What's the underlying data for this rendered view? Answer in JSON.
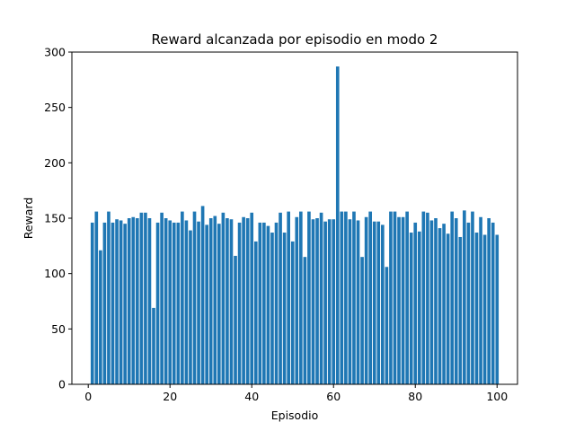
{
  "chart_data": {
    "type": "bar",
    "title": "Reward alcanzada por episodio en modo 2",
    "xlabel": "Episodio",
    "ylabel": "Reward",
    "xlim": [
      -4,
      105
    ],
    "ylim": [
      0,
      300
    ],
    "xticks": [
      0,
      20,
      40,
      60,
      80,
      100
    ],
    "yticks": [
      0,
      50,
      100,
      150,
      200,
      250,
      300
    ],
    "grid": false,
    "bar_color": "#1f77b4",
    "x": [
      1,
      2,
      3,
      4,
      5,
      6,
      7,
      8,
      9,
      10,
      11,
      12,
      13,
      14,
      15,
      16,
      17,
      18,
      19,
      20,
      21,
      22,
      23,
      24,
      25,
      26,
      27,
      28,
      29,
      30,
      31,
      32,
      33,
      34,
      35,
      36,
      37,
      38,
      39,
      40,
      41,
      42,
      43,
      44,
      45,
      46,
      47,
      48,
      49,
      50,
      51,
      52,
      53,
      54,
      55,
      56,
      57,
      58,
      59,
      60,
      61,
      62,
      63,
      64,
      65,
      66,
      67,
      68,
      69,
      70,
      71,
      72,
      73,
      74,
      75,
      76,
      77,
      78,
      79,
      80,
      81,
      82,
      83,
      84,
      85,
      86,
      87,
      88,
      89,
      90,
      91,
      92,
      93,
      94,
      95,
      96,
      97,
      98,
      99,
      100
    ],
    "values": [
      146,
      156,
      121,
      146,
      156,
      146,
      149,
      148,
      145,
      150,
      151,
      150,
      155,
      155,
      150,
      69,
      146,
      155,
      150,
      148,
      146,
      146,
      156,
      148,
      139,
      156,
      147,
      161,
      144,
      150,
      152,
      145,
      155,
      150,
      149,
      116,
      146,
      151,
      150,
      155,
      129,
      146,
      146,
      143,
      137,
      146,
      155,
      137,
      156,
      129,
      151,
      156,
      115,
      156,
      149,
      150,
      155,
      147,
      149,
      149,
      287,
      156,
      156,
      149,
      156,
      148,
      115,
      151,
      156,
      147,
      147,
      144,
      106,
      156,
      156,
      151,
      151,
      156,
      137,
      146,
      138,
      156,
      155,
      148,
      150,
      141,
      145,
      136,
      156,
      150,
      133,
      157,
      146,
      156,
      137,
      151,
      135,
      150,
      146,
      135
    ]
  }
}
